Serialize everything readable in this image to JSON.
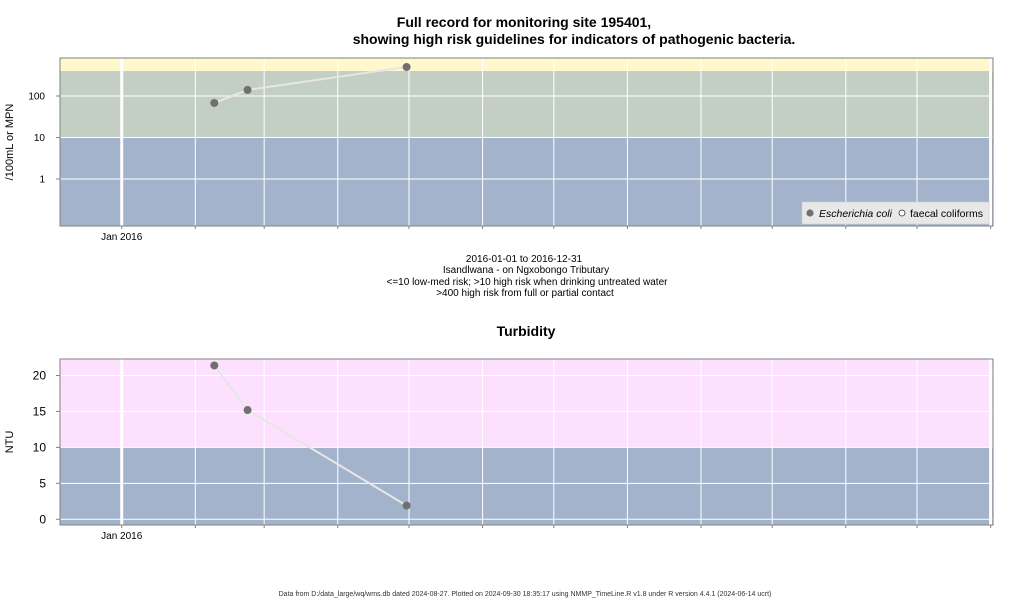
{
  "main_title": {
    "line1": "Full record for monitoring site 195401,",
    "line2": "showing high risk guidelines for indicators of pathogenic bacteria."
  },
  "bacteria_subtitle": [
    "2016-01-01 to 2016-12-31",
    "Isandlwana - on Ngxobongo Tributary",
    "<=10 low-med risk; >10 high risk when drinking untreated water",
    ">400 high risk from full or partial contact"
  ],
  "footer": "Data from D:/data_large/wq/wms.db dated 2024-08-27. Plotted on 2024-09-30 18:35:17 using NMMP_TimeLine.R v1.8 under R version 4.4.1 (2024-06-14 ucrt)",
  "colors": {
    "band_low": "#a3b3cc",
    "band_mid": "#c4cfc3",
    "band_high_bacteria": "#fff8cc",
    "band_high_turbidity": "#fde0fd",
    "line": "#e6e6e6",
    "point": "#707070",
    "grid": "#ffffff"
  },
  "chart_data": [
    {
      "type": "line",
      "title": "",
      "ylabel": "/100mL or MPN",
      "xlabel": "",
      "x_tick_labels": [
        "Jan 2016"
      ],
      "y_tick_labels": [
        "1",
        "10",
        "100"
      ],
      "y_scale": "log",
      "grid": true,
      "legend": {
        "placement": "bottom-right",
        "entries": [
          "Escherichia coli",
          "faecal coliforms"
        ]
      },
      "series": [
        {
          "name": "Escherichia coli",
          "points": [
            {
              "x": "2016-02-09",
              "y": 68
            },
            {
              "x": "2016-02-23",
              "y": 140
            },
            {
              "x": "2016-04-30",
              "y": 500
            }
          ]
        },
        {
          "name": "faecal coliforms",
          "points": []
        }
      ],
      "guideline_bands": [
        {
          "from": 0,
          "to": 10,
          "label": "low-med risk"
        },
        {
          "from": 10,
          "to": 400,
          "label": "high risk when drinking untreated water"
        },
        {
          "from": 400,
          "to": null,
          "label": "high risk from full or partial contact"
        }
      ]
    },
    {
      "type": "line",
      "title": "Turbidity",
      "ylabel": "NTU",
      "xlabel": "",
      "x_tick_labels": [
        "Jan 2016"
      ],
      "y_tick_labels": [
        "0",
        "5",
        "10",
        "15",
        "20"
      ],
      "ylim": [
        -0.8,
        22.3
      ],
      "grid": true,
      "series": [
        {
          "points": [
            {
              "x": "2016-02-09",
              "y": 21.4
            },
            {
              "x": "2016-02-23",
              "y": 15.2
            },
            {
              "x": "2016-04-30",
              "y": 1.9
            }
          ]
        }
      ],
      "guideline_bands": [
        {
          "from": null,
          "to": 10
        },
        {
          "from": 10,
          "to": null
        }
      ]
    }
  ]
}
